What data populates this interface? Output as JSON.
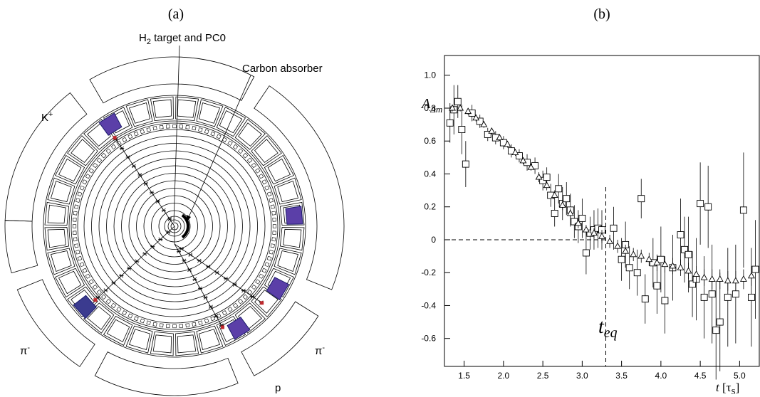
{
  "panel_a": {
    "label": "(a)",
    "annotations": {
      "target": {
        "main": "H",
        "sub": "2",
        "rest": " target and PC0"
      },
      "absorber": "Carbon absorber",
      "kaon": {
        "main": "K",
        "sup": "+"
      },
      "pion_left": {
        "main": "π",
        "sup": "-"
      },
      "pion_right": {
        "main": "π",
        "sup": "-"
      },
      "proton": "p"
    }
  },
  "chart_data": {
    "type": "scatter",
    "panel_label": "(b)",
    "xlabel": [
      "t",
      " [τ",
      "S",
      "]"
    ],
    "ylabel": [
      "A",
      "Δm"
    ],
    "annotation": [
      "t",
      "eq"
    ],
    "xlim": [
      1.25,
      5.25
    ],
    "ylim": [
      -0.77,
      1.12
    ],
    "xticks": [
      1.5,
      {
        "value": 2,
        "label": "2.0"
      },
      2.5,
      {
        "value": 3,
        "label": "3.0"
      },
      3.5,
      {
        "value": 4,
        "label": "4.0"
      },
      4.5,
      {
        "value": 5,
        "label": "5.0"
      }
    ],
    "yticks": [
      -0.6,
      -0.4,
      -0.2,
      0,
      0.2,
      0.4,
      0.6,
      0.8,
      {
        "value": 1,
        "label": "1.0"
      }
    ],
    "reference_lines": {
      "t_eq": 3.3,
      "t_eq_top": 0.32,
      "zero": 0
    },
    "series": [
      {
        "marker": "square",
        "color": "#000000",
        "x": [
          1.32,
          1.37,
          1.42,
          1.47,
          1.52,
          1.6,
          1.7,
          1.8,
          1.9,
          2.0,
          2.1,
          2.2,
          2.3,
          2.4,
          2.5,
          2.55,
          2.6,
          2.65,
          2.7,
          2.75,
          2.8,
          2.85,
          2.9,
          2.95,
          3.0,
          3.05,
          3.1,
          3.15,
          3.2,
          3.25,
          3.4,
          3.5,
          3.55,
          3.6,
          3.7,
          3.75,
          3.8,
          3.9,
          3.95,
          4.0,
          4.05,
          4.15,
          4.25,
          4.3,
          4.35,
          4.4,
          4.45,
          4.5,
          4.55,
          4.6,
          4.65,
          4.7,
          4.75,
          4.85,
          4.95,
          5.05,
          5.15,
          5.2
        ],
        "values": [
          0.71,
          0.79,
          0.84,
          0.67,
          0.46,
          0.77,
          0.72,
          0.64,
          0.62,
          0.59,
          0.54,
          0.51,
          0.47,
          0.45,
          0.36,
          0.38,
          0.27,
          0.16,
          0.31,
          0.22,
          0.25,
          0.18,
          0.11,
          0.08,
          0.13,
          -0.08,
          0.04,
          0.06,
          0.07,
          0.06,
          0.07,
          -0.12,
          -0.03,
          -0.17,
          -0.2,
          0.25,
          -0.36,
          -0.14,
          -0.28,
          -0.12,
          -0.37,
          -0.17,
          0.03,
          -0.06,
          -0.09,
          -0.27,
          -0.24,
          0.22,
          -0.35,
          0.2,
          -0.33,
          -0.55,
          -0.5,
          -0.35,
          -0.33,
          0.18,
          -0.35,
          -0.18
        ],
        "errors": [
          0.12,
          0.15,
          0.1,
          0.15,
          0.14,
          0.05,
          0.04,
          0.04,
          0.04,
          0.04,
          0.04,
          0.04,
          0.05,
          0.05,
          0.06,
          0.06,
          0.07,
          0.08,
          0.09,
          0.1,
          0.1,
          0.1,
          0.1,
          0.1,
          0.12,
          0.13,
          0.1,
          0.12,
          0.12,
          0.12,
          0.13,
          0.13,
          0.14,
          0.13,
          0.14,
          0.12,
          0.15,
          0.15,
          0.17,
          0.2,
          0.2,
          0.2,
          0.22,
          0.2,
          0.23,
          0.2,
          0.25,
          0.25,
          0.25,
          0.25,
          0.3,
          0.3,
          0.3,
          0.3,
          0.3,
          0.35,
          0.3,
          0.3
        ]
      },
      {
        "marker": "triangle",
        "color": "#000000",
        "x": [
          1.35,
          1.45,
          1.55,
          1.65,
          1.75,
          1.85,
          1.95,
          2.05,
          2.15,
          2.25,
          2.35,
          2.45,
          2.55,
          2.65,
          2.75,
          2.85,
          2.95,
          3.05,
          3.15,
          3.25,
          3.35,
          3.45,
          3.55,
          3.65,
          3.75,
          3.85,
          3.95,
          4.05,
          4.15,
          4.25,
          4.35,
          4.45,
          4.55,
          4.65,
          4.75,
          4.85,
          4.95,
          5.05,
          5.15
        ],
        "values": [
          0.8,
          0.8,
          0.78,
          0.74,
          0.7,
          0.66,
          0.62,
          0.58,
          0.53,
          0.48,
          0.44,
          0.38,
          0.33,
          0.27,
          0.21,
          0.16,
          0.1,
          0.06,
          0.04,
          0.02,
          -0.01,
          -0.04,
          -0.07,
          -0.09,
          -0.1,
          -0.12,
          -0.14,
          -0.15,
          -0.16,
          -0.17,
          -0.19,
          -0.21,
          -0.23,
          -0.24,
          -0.24,
          -0.25,
          -0.25,
          -0.24,
          -0.22
        ],
        "errors": [
          0.02,
          0.02,
          0.02,
          0.02,
          0.02,
          0.02,
          0.02,
          0.02,
          0.02,
          0.02,
          0.02,
          0.03,
          0.03,
          0.03,
          0.03,
          0.03,
          0.03,
          0.03,
          0.03,
          0.04,
          0.04,
          0.04,
          0.04,
          0.04,
          0.04,
          0.04,
          0.05,
          0.05,
          0.05,
          0.05,
          0.05,
          0.05,
          0.05,
          0.06,
          0.06,
          0.06,
          0.06,
          0.06,
          0.06
        ]
      }
    ]
  }
}
